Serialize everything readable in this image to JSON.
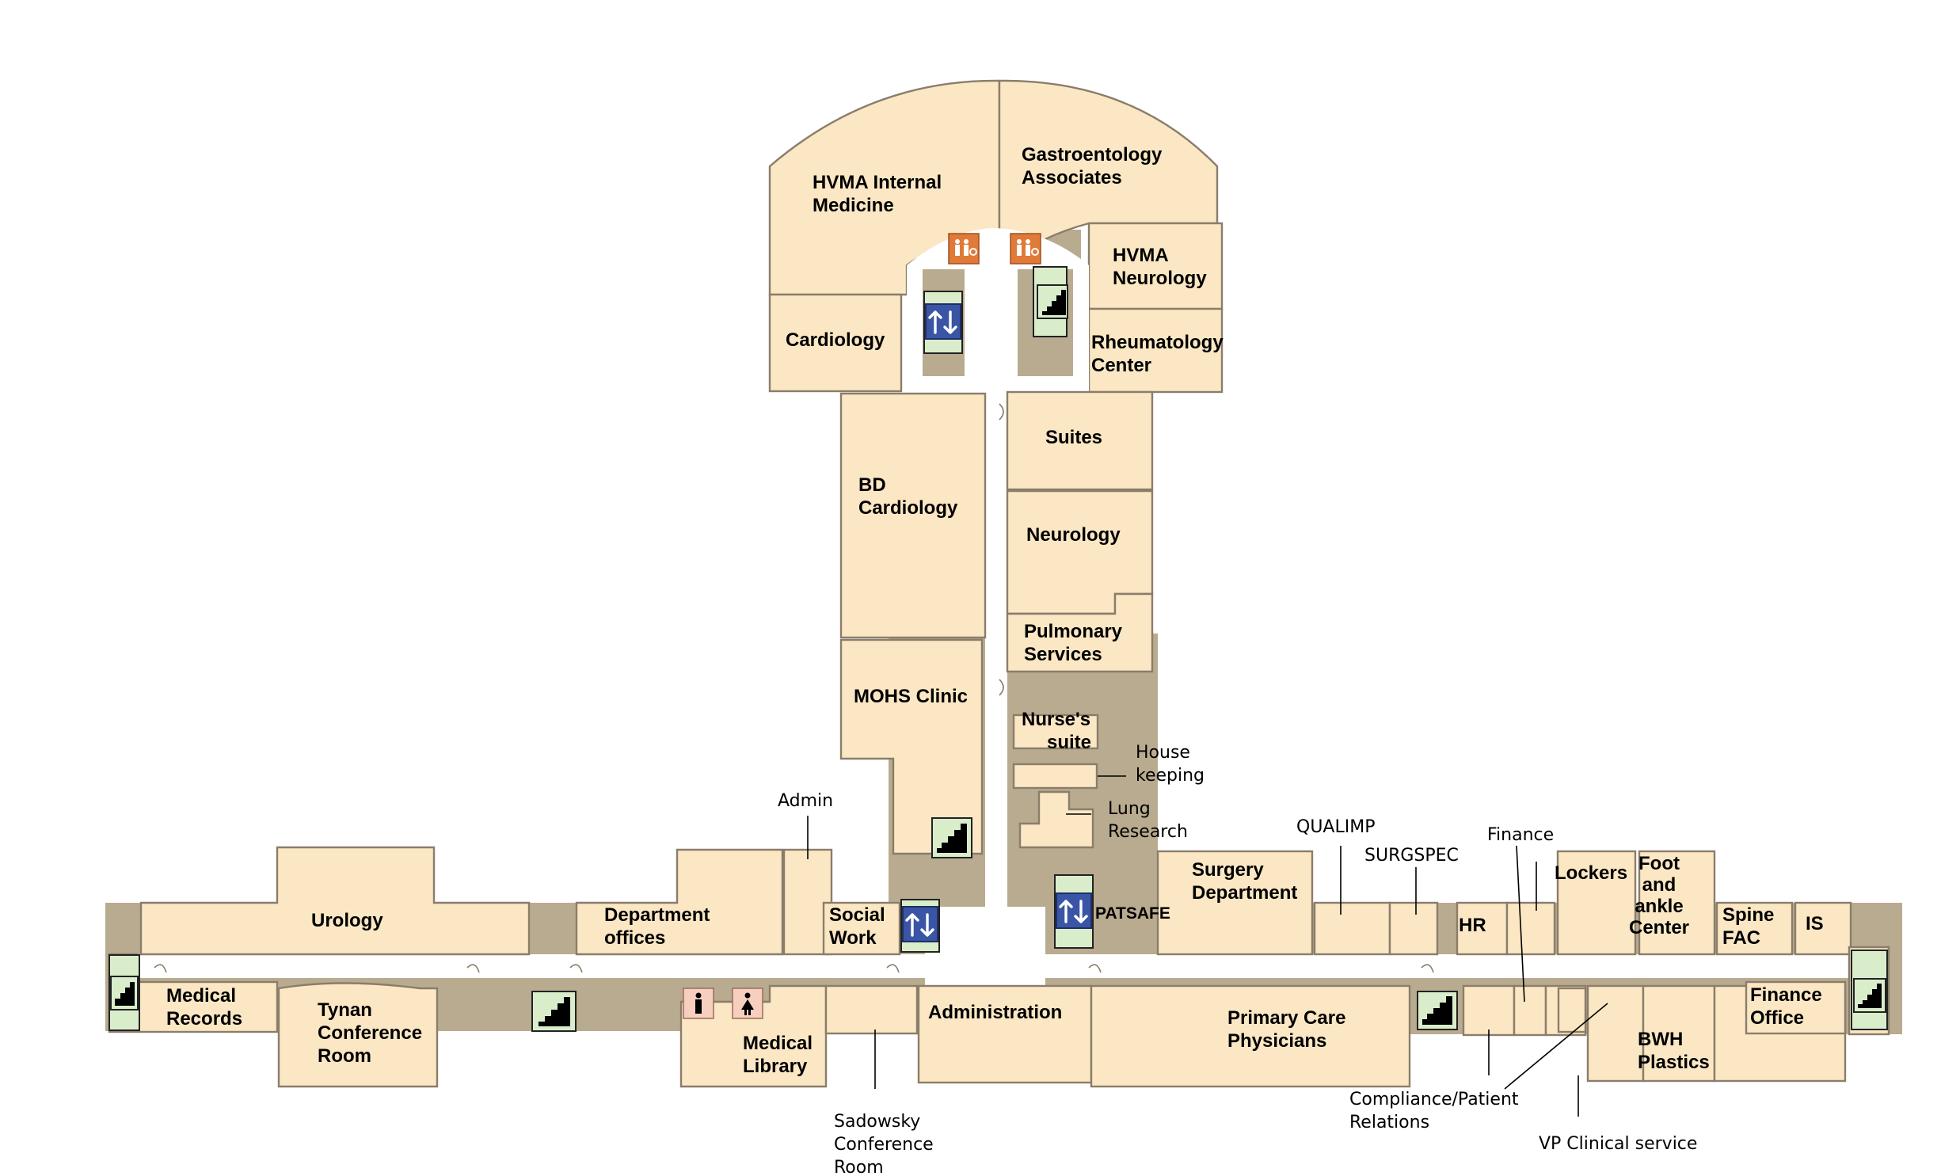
{
  "floor_map": {
    "rooms": {
      "hvma_internal_medicine": "HVMA Internal\nMedicine",
      "gastroenterology": "Gastroentology\nAssociates",
      "hvma_neurology": "HVMA\nNeurology",
      "cardiology": "Cardiology",
      "rheumatology": "Rheumatology\nCenter",
      "suites": "Suites",
      "bd_cardiology": "BD\nCardiology",
      "neurology": "Neurology",
      "pulmonary": "Pulmonary\nServices",
      "mohs_clinic": "MOHS Clinic",
      "nurses_suite": "Nurse's\nsuite",
      "urology": "Urology",
      "department_offices": "Department\noffices",
      "social_work": "Social\nWork",
      "patsafe": "PATSAFE",
      "surgery_department": "Surgery\nDepartment",
      "hr": "HR",
      "lockers": "Lockers",
      "foot_ankle": "Foot\nand\nankle\nCenter",
      "spine_fac": "Spine\nFAC",
      "is": "IS",
      "medical_records": "Medical\nRecords",
      "tynan": "Tynan\nConference\nRoom",
      "medical_library": "Medical\nLibrary",
      "administration": "Administration",
      "primary_care": "Primary Care\nPhysicians",
      "bwh_plastics": "BWH\nPlastics",
      "finance_office": "Finance\nOffice"
    },
    "callouts": {
      "admin": "Admin",
      "housekeeping": "House\nkeeping",
      "lung_research": "Lung\nResearch",
      "qualimp": "QUALIMP",
      "surgspec": "SURGSPEC",
      "finance": "Finance",
      "sadowsky": "Sadowsky\nConference\nRoom",
      "compliance": "Compliance/Patient\nRelations",
      "vp_clinical": "VP Clinical service"
    },
    "icons": {
      "stairs": "stairs-icon",
      "elevator": "elevator-icon",
      "restroom_accessible": "accessible-restroom-icon",
      "mens_restroom": "mens-restroom-icon",
      "womens_restroom": "womens-restroom-icon"
    },
    "colors": {
      "room_fill": "#fbe7c4",
      "hallway": "#b9ab8f",
      "elevator": "#3a55a6",
      "stairs_bg": "#d9edcb",
      "restroom_orange": "#e07a38",
      "restroom_pink": "#f6cfbf"
    }
  }
}
